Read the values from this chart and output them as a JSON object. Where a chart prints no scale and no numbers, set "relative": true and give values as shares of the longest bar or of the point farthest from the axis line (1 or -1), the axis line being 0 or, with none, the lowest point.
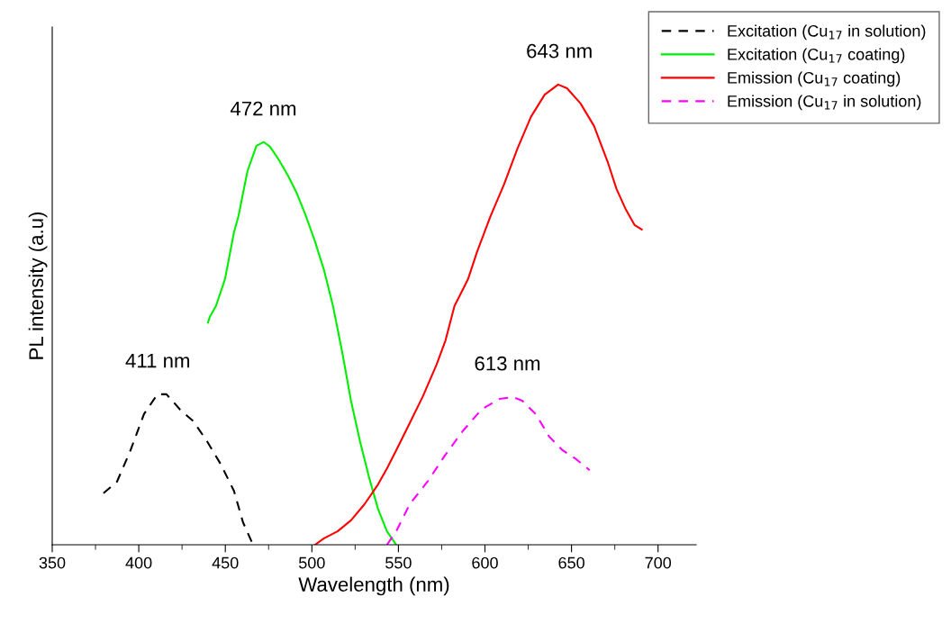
{
  "chart_data": {
    "type": "line",
    "relative": true,
    "xlabel": "Wavelength (nm)",
    "ylabel": "PL intensity (a.u)",
    "xlim": [
      350,
      722
    ],
    "xticks": [
      350,
      400,
      450,
      500,
      550,
      600,
      650,
      700
    ],
    "grid": false,
    "legend": "top right",
    "marker": "none",
    "series": [
      {
        "name": "Excitation (Cu$_{17}$ in solution)",
        "color": "#000000",
        "line_style": "dashed",
        "x": [
          379.6,
          387.4,
          395.2,
          403.0,
          410.8,
          416.0,
          423.8,
          431.6,
          439.4,
          447.2,
          455.0,
          460.2,
          466.0
        ],
        "values": [
          0.112,
          0.137,
          0.205,
          0.284,
          0.327,
          0.327,
          0.294,
          0.268,
          0.225,
          0.176,
          0.117,
          0.049,
          0
        ]
      },
      {
        "name": "Excitation (Cu$_{17}$ coating)",
        "color": "#00ee00",
        "line_style": "solid",
        "x": [
          440.0,
          441.0,
          444.6,
          449.8,
          455.0,
          457.6,
          462.8,
          468.0,
          472.2,
          475.8,
          481.0,
          486.2,
          491.4,
          496.6,
          501.8,
          507.0,
          512.2,
          517.4,
          522.6,
          527.8,
          533.0,
          538.2,
          543.4,
          548.7
        ],
        "values": [
          0.483,
          0.495,
          0.519,
          0.577,
          0.679,
          0.714,
          0.812,
          0.867,
          0.875,
          0.865,
          0.836,
          0.802,
          0.763,
          0.714,
          0.659,
          0.597,
          0.519,
          0.421,
          0.313,
          0.225,
          0.147,
          0.078,
          0.029,
          0
        ]
      },
      {
        "name": "Emission (Cu$_{17}$ coating)",
        "color": "#ff0000",
        "line_style": "solid",
        "x": [
          501.8,
          507.0,
          514.8,
          522.6,
          530.4,
          538.2,
          543.4,
          548.7,
          556.5,
          564.2,
          572.0,
          577.2,
          582.4,
          585.0,
          590.2,
          595.4,
          603.2,
          611.0,
          618.8,
          626.6,
          634.5,
          642.3,
          647.4,
          655.2,
          663.0,
          670.9,
          676.0,
          681.2,
          686.4,
          690.6
        ],
        "values": [
          0,
          0.014,
          0.029,
          0.053,
          0.088,
          0.131,
          0.166,
          0.205,
          0.264,
          0.323,
          0.391,
          0.444,
          0.519,
          0.538,
          0.577,
          0.636,
          0.714,
          0.783,
          0.861,
          0.93,
          0.978,
          1,
          0.992,
          0.959,
          0.91,
          0.832,
          0.773,
          0.73,
          0.695,
          0.685
        ]
      },
      {
        "name": "Emission (Cu$_{17}$ in solution)",
        "color": "#ff00ff",
        "line_style": "dashed",
        "x": [
          543.4,
          548.7,
          556.5,
          566.8,
          577.2,
          587.6,
          598.0,
          608.4,
          616.2,
          621.5,
          629.3,
          637.1,
          644.9,
          652.7,
          660.5
        ],
        "values": [
          0,
          0.029,
          0.088,
          0.137,
          0.196,
          0.249,
          0.294,
          0.317,
          0.321,
          0.313,
          0.284,
          0.235,
          0.205,
          0.186,
          0.162
        ]
      }
    ],
    "annotations": [
      {
        "text": "411 nm",
        "x": 411,
        "y": 0.327
      },
      {
        "text": "472 nm",
        "x": 472,
        "y": 0.875
      },
      {
        "text": "643 nm",
        "x": 643,
        "y": 1
      },
      {
        "text": "613 nm",
        "x": 613,
        "y": 0.321
      }
    ]
  }
}
